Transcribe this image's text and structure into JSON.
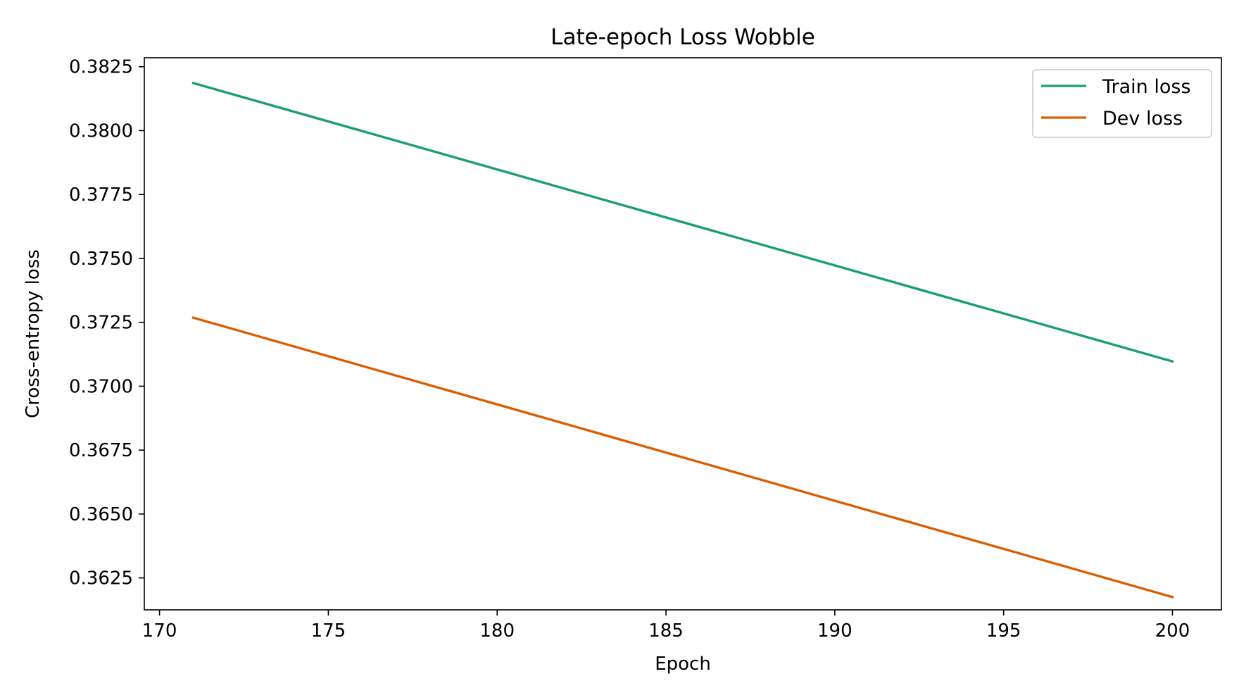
{
  "chart_data": {
    "type": "line",
    "title": "Late-epoch Loss Wobble",
    "xlabel": "Epoch",
    "ylabel": "Cross-entropy loss",
    "xlim": [
      169.55,
      201.45
    ],
    "ylim": [
      0.36125,
      0.38285
    ],
    "xticks": [
      170,
      175,
      180,
      185,
      190,
      195,
      200
    ],
    "yticks": [
      0.3625,
      0.365,
      0.3675,
      0.37,
      0.3725,
      0.375,
      0.3775,
      0.38,
      0.3825
    ],
    "ytick_labels": [
      "0.3625",
      "0.3650",
      "0.3675",
      "0.3700",
      "0.3725",
      "0.3750",
      "0.3775",
      "0.3800",
      "0.3825"
    ],
    "grid": false,
    "legend": "top-right",
    "series": [
      {
        "name": "Train loss",
        "color": "#1b9e77",
        "x": [
          171,
          200
        ],
        "y": [
          0.38186,
          0.37097
        ]
      },
      {
        "name": "Dev loss",
        "color": "#d95f02",
        "x": [
          171,
          200
        ],
        "y": [
          0.37268,
          0.36175
        ]
      }
    ]
  }
}
